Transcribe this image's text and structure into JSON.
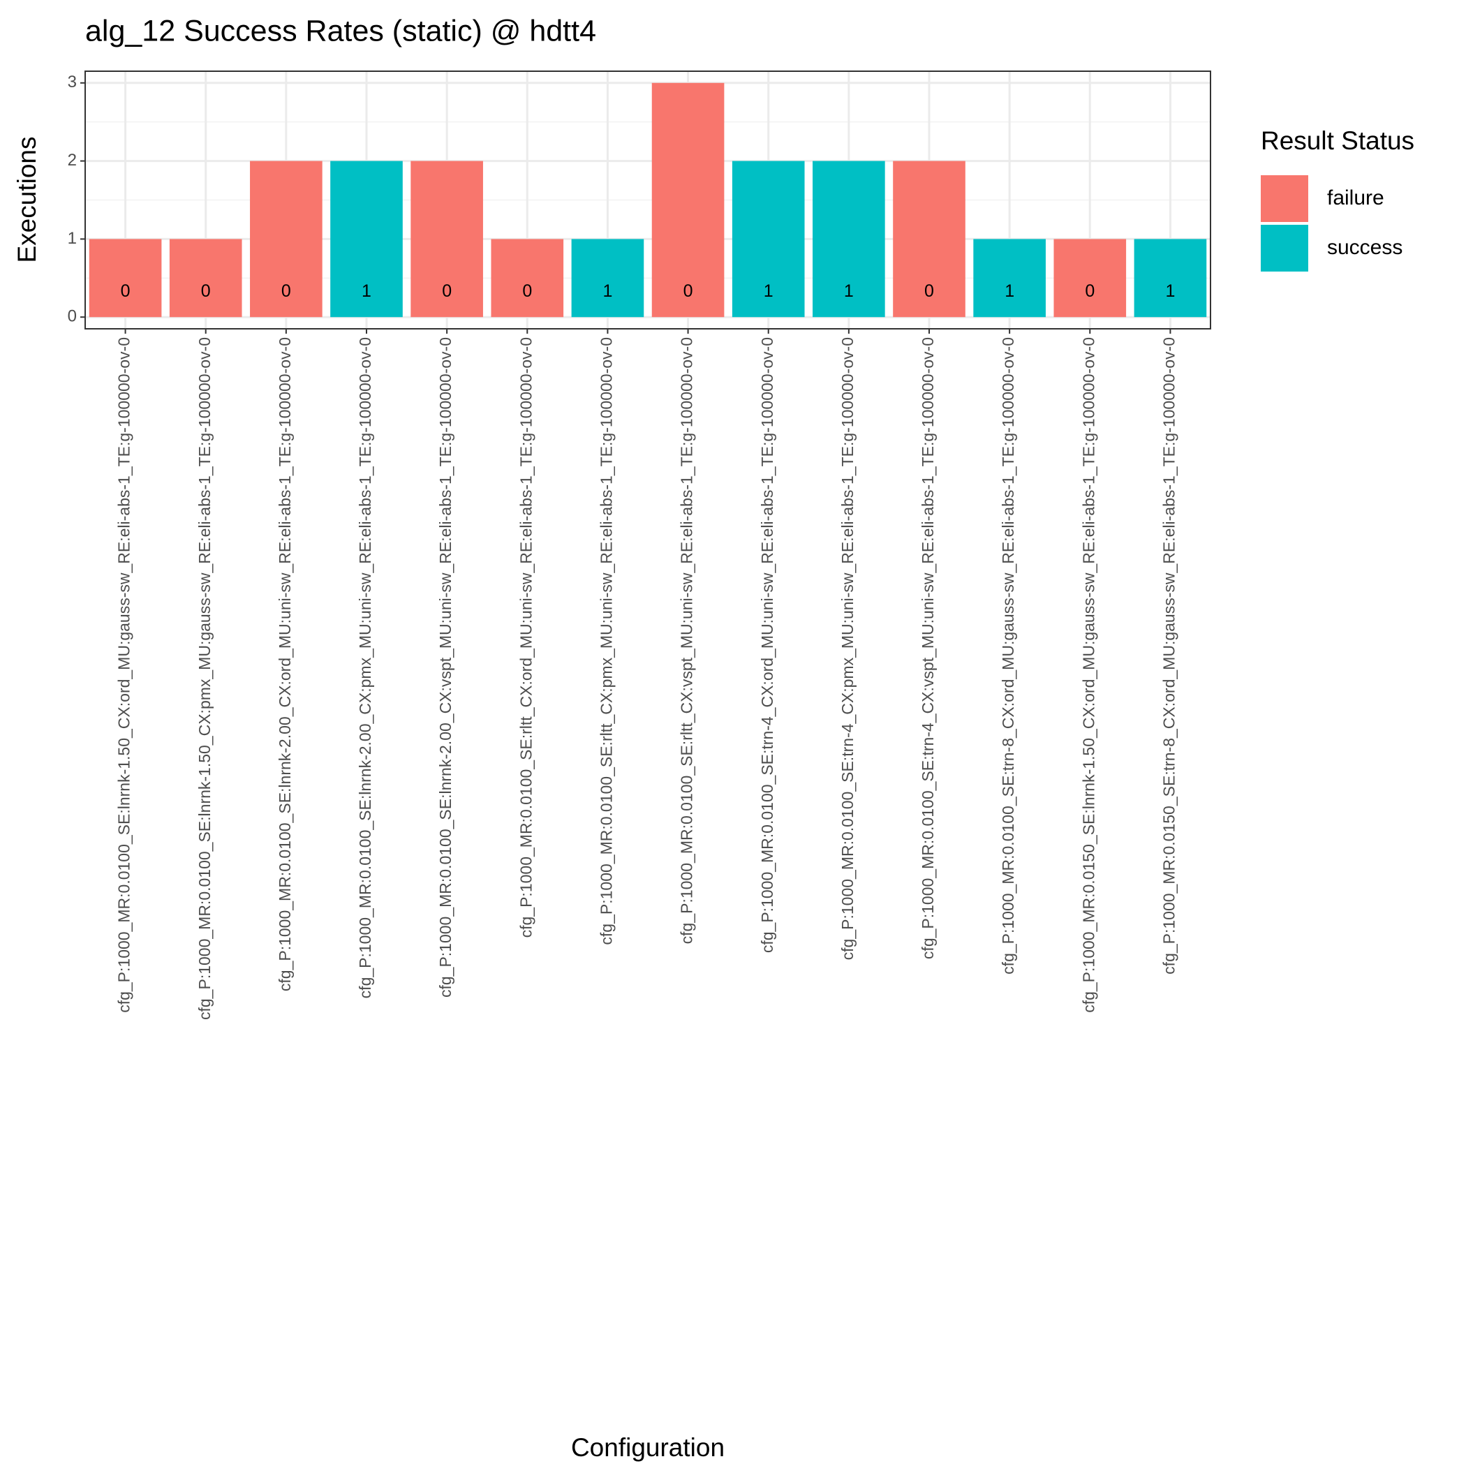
{
  "chart_data": {
    "type": "bar",
    "title": "alg_12 Success Rates (static) @ hdtt4",
    "x_label": "Configuration",
    "y_label": "Executions",
    "legend_title": "Result Status",
    "legend_position": "right",
    "grid": true,
    "categories": [
      "cfg_P:1000_MR:0.0100_SE:lnrnk-1.50_CX:ord_MU:gauss-sw_RE:eli-abs-1_TE:g-100000-ov-0",
      "cfg_P:1000_MR:0.0100_SE:lnrnk-1.50_CX:pmx_MU:gauss-sw_RE:eli-abs-1_TE:g-100000-ov-0",
      "cfg_P:1000_MR:0.0100_SE:lnrnk-2.00_CX:ord_MU:uni-sw_RE:eli-abs-1_TE:g-100000-ov-0",
      "cfg_P:1000_MR:0.0100_SE:lnrnk-2.00_CX:pmx_MU:uni-sw_RE:eli-abs-1_TE:g-100000-ov-0",
      "cfg_P:1000_MR:0.0100_SE:lnrnk-2.00_CX:vspt_MU:uni-sw_RE:eli-abs-1_TE:g-100000-ov-0",
      "cfg_P:1000_MR:0.0100_SE:rltt_CX:ord_MU:uni-sw_RE:eli-abs-1_TE:g-100000-ov-0",
      "cfg_P:1000_MR:0.0100_SE:rltt_CX:pmx_MU:uni-sw_RE:eli-abs-1_TE:g-100000-ov-0",
      "cfg_P:1000_MR:0.0100_SE:rltt_CX:vspt_MU:uni-sw_RE:eli-abs-1_TE:g-100000-ov-0",
      "cfg_P:1000_MR:0.0100_SE:trn-4_CX:ord_MU:uni-sw_RE:eli-abs-1_TE:g-100000-ov-0",
      "cfg_P:1000_MR:0.0100_SE:trn-4_CX:pmx_MU:uni-sw_RE:eli-abs-1_TE:g-100000-ov-0",
      "cfg_P:1000_MR:0.0100_SE:trn-4_CX:vspt_MU:uni-sw_RE:eli-abs-1_TE:g-100000-ov-0",
      "cfg_P:1000_MR:0.0100_SE:trn-8_CX:ord_MU:gauss-sw_RE:eli-abs-1_TE:g-100000-ov-0",
      "cfg_P:1000_MR:0.0150_SE:lnrnk-1.50_CX:ord_MU:gauss-sw_RE:eli-abs-1_TE:g-100000-ov-0",
      "cfg_P:1000_MR:0.0150_SE:trn-8_CX:ord_MU:gauss-sw_RE:eli-abs-1_TE:g-100000-ov-0"
    ],
    "series": [
      {
        "name": "failure",
        "color": "#F8766D",
        "values": [
          1,
          1,
          2,
          null,
          2,
          1,
          null,
          3,
          null,
          null,
          2,
          null,
          1,
          null
        ]
      },
      {
        "name": "success",
        "color": "#00BFC4",
        "values": [
          null,
          null,
          null,
          2,
          null,
          null,
          1,
          null,
          2,
          2,
          null,
          1,
          null,
          1
        ]
      }
    ],
    "bar_labels": [
      0,
      0,
      0,
      1,
      0,
      0,
      1,
      0,
      1,
      1,
      0,
      1,
      0,
      1
    ],
    "ylim": [
      -0.15,
      3.15
    ],
    "yticks": [
      0,
      1,
      2,
      3
    ],
    "yminor": [
      0.5,
      1.5,
      2.5
    ]
  }
}
